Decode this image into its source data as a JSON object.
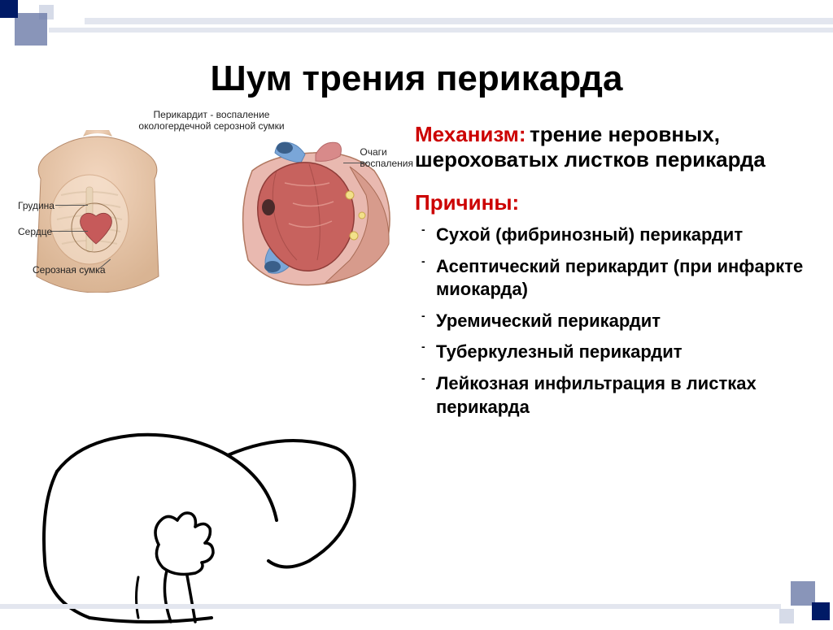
{
  "title": "Шум трения перикарда",
  "colors": {
    "accent_red": "#cc0000",
    "text": "#000000",
    "deco_dark": "#001a66",
    "deco_mid": "#6c7ba8",
    "deco_light": "#e3e6ef"
  },
  "diagram": {
    "caption": "Перикардит - воспаление\nокологердечной серозной сумки",
    "labels": {
      "sternum": "Грудина",
      "heart": "Сердце",
      "serous_sac": "Серозная сумка",
      "inflammation_foci": "Очаги\nвоспаления"
    }
  },
  "mechanism": {
    "label": "Механизм:",
    "text": "трение неровных, шероховатых листков перикарда"
  },
  "causes": {
    "label": "Причины:",
    "items": [
      "Сухой (фибринозный) перикардит",
      "Асептический перикардит (при инфаркте миокарда)",
      "Уремический перикардит",
      "Туберкулезный перикардит",
      "Лейкозная инфильтрация в листках перикарда"
    ]
  },
  "typography": {
    "title_fontsize": 44,
    "body_fontsize": 26,
    "list_fontsize": 22,
    "label_fontsize": 12
  }
}
